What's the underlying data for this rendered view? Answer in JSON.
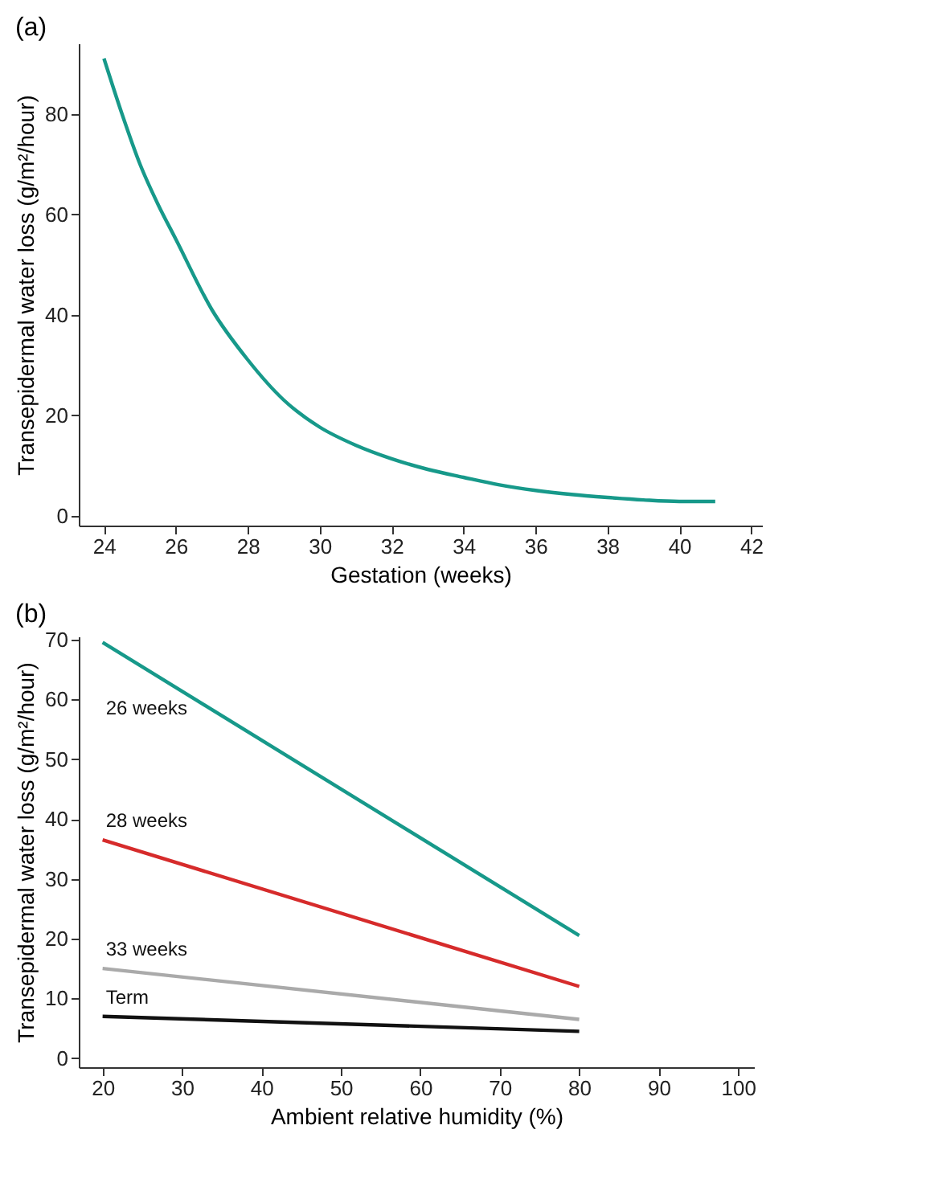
{
  "chart_data": [
    {
      "type": "line",
      "title": "(a)",
      "xlabel": "Gestation (weeks)",
      "ylabel": "Transepidermal water loss (g/m²/hour)",
      "x": [
        24,
        24.5,
        25,
        25.5,
        26,
        27,
        28,
        29,
        30,
        31,
        32,
        33,
        34,
        35,
        36,
        37,
        38,
        39,
        40,
        41
      ],
      "series": [
        {
          "color": "#17998a",
          "values": [
            91,
            80,
            70,
            62,
            55,
            41,
            31,
            23,
            17.6,
            14,
            11.3,
            9.2,
            7.6,
            6.1,
            5,
            4.2,
            3.6,
            3.1,
            2.8,
            2.8
          ]
        }
      ],
      "xlim": [
        23.3,
        42.3
      ],
      "xticks": [
        24,
        26,
        28,
        30,
        32,
        34,
        36,
        38,
        40,
        42
      ],
      "ylim": [
        -2,
        94
      ],
      "yticks": [
        0,
        20,
        40,
        60,
        80
      ],
      "grid": false,
      "legend": false
    },
    {
      "type": "line",
      "title": "(b)",
      "xlabel": "Ambient relative humidity (%)",
      "ylabel": "Transepidermal water loss (g/m²/hour)",
      "x": [
        20,
        80
      ],
      "series": [
        {
          "name": "26 weeks",
          "color": "#17998a",
          "values": [
            69.5,
            20.5
          ]
        },
        {
          "name": "28 weeks",
          "color": "#d62b2b",
          "values": [
            36.5,
            12
          ]
        },
        {
          "name": "33 weeks",
          "color": "#aaaaaa",
          "values": [
            15,
            6.5
          ]
        },
        {
          "name": "Term",
          "color": "#111111",
          "values": [
            7,
            4.5
          ]
        }
      ],
      "xlim": [
        17,
        102
      ],
      "xticks": [
        20,
        30,
        40,
        50,
        60,
        70,
        80,
        90,
        100
      ],
      "ylim": [
        -1.5,
        70.5
      ],
      "yticks": [
        0,
        10,
        20,
        30,
        40,
        50,
        60,
        70
      ],
      "grid": false,
      "legend": false
    }
  ]
}
